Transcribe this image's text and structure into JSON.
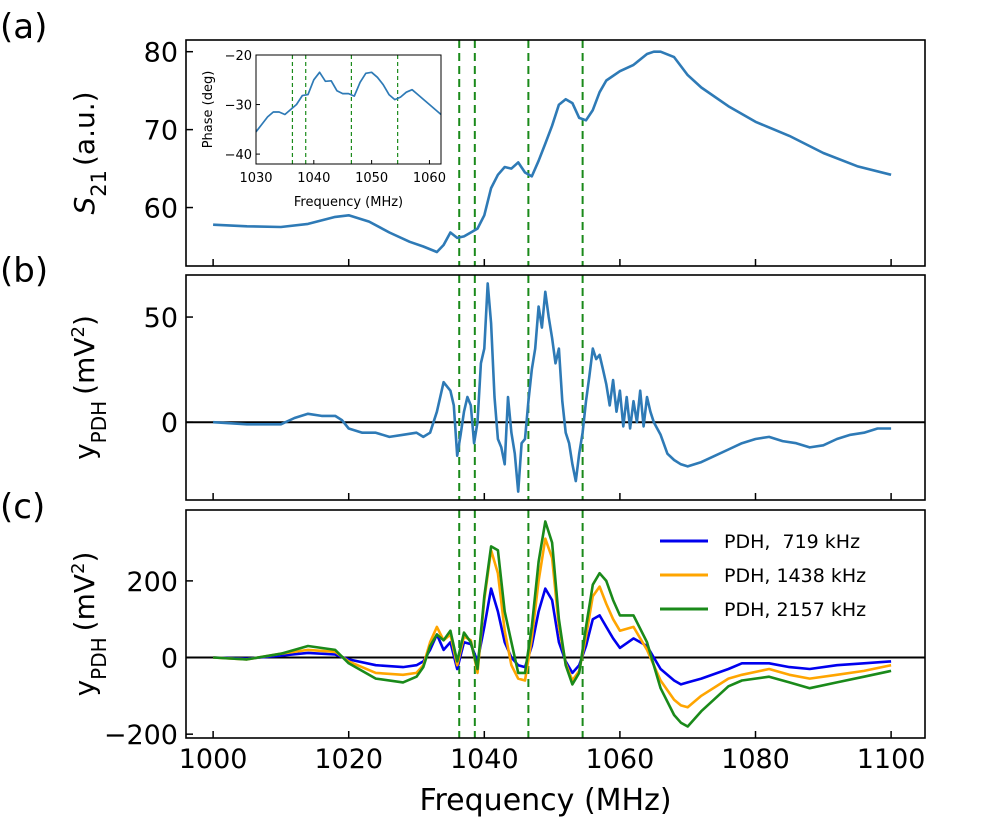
{
  "chart_data": [
    {
      "type": "line",
      "panel_label": "(a)",
      "ylabel_main": "S",
      "ylabel_sub": "21",
      "ylabel_unit": "(a.u.)",
      "xlim": [
        996,
        1105
      ],
      "ylim": [
        52.5,
        81.5
      ],
      "yticks": [
        60,
        70,
        80
      ],
      "xticks": [
        1000,
        1020,
        1040,
        1060,
        1080,
        1100
      ],
      "grid": false,
      "series": [
        {
          "name": "S21",
          "color": "#2e7ab6",
          "x": [
            1000,
            1005,
            1010,
            1014,
            1018,
            1020,
            1023,
            1026,
            1029,
            1031,
            1033,
            1034,
            1035,
            1036,
            1037,
            1038,
            1039,
            1040,
            1041,
            1042,
            1043,
            1044,
            1045,
            1046,
            1047,
            1048,
            1049,
            1050,
            1051,
            1052,
            1053,
            1054,
            1055,
            1056,
            1057,
            1058,
            1060,
            1062,
            1064,
            1065,
            1066,
            1068,
            1070,
            1072,
            1076,
            1080,
            1085,
            1090,
            1095,
            1100
          ],
          "y": [
            57.8,
            57.6,
            57.5,
            57.9,
            58.8,
            59.0,
            58.2,
            56.8,
            55.6,
            55.0,
            54.3,
            55.2,
            56.8,
            56.1,
            56.3,
            56.8,
            57.3,
            59.0,
            62.5,
            64.2,
            65.2,
            65.0,
            65.8,
            64.5,
            64.0,
            66.0,
            68.2,
            70.5,
            73.2,
            73.9,
            73.4,
            71.5,
            71.2,
            72.5,
            74.8,
            76.3,
            77.5,
            78.3,
            79.7,
            80.0,
            80.0,
            79.3,
            77.0,
            75.4,
            73.0,
            71.0,
            69.2,
            67.0,
            65.3,
            64.2
          ]
        }
      ],
      "vlines": [
        1036.3,
        1038.6,
        1046.5,
        1054.5
      ],
      "inset": {
        "xlabel": "Frequency (MHz)",
        "ylabel": "Phase (deg)",
        "xlim": [
          1030,
          1062
        ],
        "ylim": [
          -42,
          -20
        ],
        "xticks": [
          1030,
          1040,
          1050,
          1060
        ],
        "yticks": [
          -20,
          -30,
          -40
        ],
        "vlines": [
          1036.3,
          1038.6,
          1046.5,
          1054.5
        ],
        "series": [
          {
            "name": "Phase",
            "color": "#2e7ab6",
            "x": [
              1030,
              1031,
              1032,
              1033,
              1034,
              1035,
              1036,
              1037,
              1038,
              1039,
              1040,
              1041,
              1042,
              1043,
              1044,
              1045,
              1046,
              1047,
              1048,
              1049,
              1050,
              1051,
              1052,
              1053,
              1054,
              1055,
              1056,
              1057,
              1058,
              1059,
              1060,
              1061,
              1062
            ],
            "y": [
              -35.5,
              -34,
              -32.5,
              -31.5,
              -31.5,
              -32,
              -31,
              -30,
              -28.2,
              -28,
              -25,
              -23.5,
              -25.3,
              -25.2,
              -27.2,
              -27.8,
              -27.8,
              -28.3,
              -25.5,
              -23.7,
              -23.5,
              -24.5,
              -26,
              -28,
              -29,
              -28.5,
              -27.5,
              -27,
              -28,
              -29,
              -30,
              -31,
              -32
            ]
          }
        ]
      }
    },
    {
      "type": "line",
      "panel_label": "(b)",
      "ylabel_main": "y",
      "ylabel_sub": "PDH",
      "ylabel_unit_pre": "(mV",
      "ylabel_unit_sup": "2",
      "ylabel_unit_post": ")",
      "xlim": [
        996,
        1105
      ],
      "ylim": [
        -37,
        70
      ],
      "yticks": [
        0,
        50
      ],
      "xticks": [
        1000,
        1020,
        1040,
        1060,
        1080,
        1100
      ],
      "grid": false,
      "hline": 0,
      "series": [
        {
          "name": "y_PDH",
          "color": "#2e7ab6",
          "x": [
            1000,
            1005,
            1010,
            1012,
            1014,
            1016,
            1018,
            1019,
            1020,
            1022,
            1024,
            1026,
            1028,
            1030,
            1031,
            1032,
            1033,
            1034,
            1035,
            1035.5,
            1036,
            1036.5,
            1037,
            1037.5,
            1038,
            1038.5,
            1039,
            1039.5,
            1040,
            1040.5,
            1041,
            1041.5,
            1042,
            1042.5,
            1043,
            1043.5,
            1044,
            1044.5,
            1045,
            1045.5,
            1046,
            1046.5,
            1047,
            1047.5,
            1048,
            1048.5,
            1049,
            1049.5,
            1050,
            1050.5,
            1051,
            1051.5,
            1052,
            1052.5,
            1053,
            1053.5,
            1054,
            1054.5,
            1055,
            1055.5,
            1056,
            1056.5,
            1057,
            1057.5,
            1058,
            1058.5,
            1059,
            1059.5,
            1060,
            1060.5,
            1061,
            1061.5,
            1062,
            1062.5,
            1063,
            1063.5,
            1064,
            1064.5,
            1065,
            1066,
            1067,
            1068,
            1069,
            1070,
            1072,
            1074,
            1076,
            1078,
            1080,
            1082,
            1084,
            1086,
            1088,
            1090,
            1092,
            1094,
            1096,
            1098,
            1100
          ],
          "y": [
            0,
            -1,
            -1,
            2,
            4,
            3,
            3,
            1,
            -3,
            -5,
            -5,
            -7,
            -6,
            -5,
            -7,
            -5,
            5,
            19,
            15,
            8,
            -16,
            -6,
            5,
            12,
            8,
            -10,
            0,
            28,
            35,
            66,
            47,
            12,
            -8,
            -12,
            -20,
            12,
            -5,
            -15,
            -33,
            -10,
            -8,
            10,
            25,
            35,
            55,
            45,
            62,
            50,
            40,
            28,
            35,
            10,
            -5,
            -10,
            -20,
            -28,
            -15,
            -5,
            10,
            22,
            35,
            30,
            32,
            25,
            18,
            8,
            20,
            5,
            15,
            -2,
            12,
            -3,
            10,
            0,
            15,
            -2,
            12,
            5,
            0,
            -6,
            -15,
            -18,
            -20,
            -21,
            -19,
            -16,
            -13,
            -10,
            -8,
            -7,
            -9,
            -10,
            -12,
            -11,
            -8,
            -6,
            -5,
            -3,
            -3
          ]
        }
      ],
      "vlines": [
        1036.3,
        1038.6,
        1046.5,
        1054.5
      ]
    },
    {
      "type": "line",
      "panel_label": "(c)",
      "ylabel_main": "y",
      "ylabel_sub": "PDH",
      "ylabel_unit_pre": "(mV",
      "ylabel_unit_sup": "2",
      "ylabel_unit_post": ")",
      "xlabel": "Frequency (MHz)",
      "xlim": [
        996,
        1105
      ],
      "ylim": [
        -210,
        385
      ],
      "yticks": [
        -200,
        0,
        200
      ],
      "xticks": [
        1000,
        1020,
        1040,
        1060,
        1080,
        1100
      ],
      "grid": false,
      "hline": 0,
      "legend_position": "top-right",
      "x": [
        1000,
        1005,
        1010,
        1014,
        1018,
        1020,
        1024,
        1028,
        1030,
        1031,
        1032,
        1033,
        1034,
        1035,
        1036,
        1037,
        1038,
        1039,
        1040,
        1041,
        1042,
        1043,
        1044,
        1045,
        1046,
        1047,
        1048,
        1049,
        1050,
        1051,
        1052,
        1053,
        1054,
        1055,
        1056,
        1057,
        1058,
        1059,
        1060,
        1062,
        1064,
        1066,
        1068,
        1069,
        1070,
        1072,
        1076,
        1078,
        1082,
        1085,
        1088,
        1092,
        1096,
        1100
      ],
      "series": [
        {
          "name": "PDH,  719 kHz",
          "color": "#0000ee",
          "values": [
            0,
            -3,
            5,
            12,
            8,
            -5,
            -20,
            -25,
            -20,
            -10,
            20,
            60,
            20,
            40,
            -30,
            40,
            35,
            -10,
            80,
            180,
            120,
            40,
            0,
            -20,
            -25,
            30,
            120,
            180,
            150,
            40,
            -10,
            -40,
            -20,
            30,
            100,
            110,
            80,
            50,
            25,
            50,
            30,
            -30,
            -60,
            -70,
            -65,
            -55,
            -30,
            -15,
            -15,
            -25,
            -30,
            -20,
            -15,
            -10
          ]
        },
        {
          "name": "PDH, 1438 kHz",
          "color": "#ffa500",
          "values": [
            0,
            -5,
            10,
            20,
            15,
            -10,
            -40,
            -45,
            -40,
            -20,
            40,
            80,
            45,
            60,
            -20,
            55,
            45,
            -40,
            150,
            280,
            220,
            70,
            -20,
            -55,
            -60,
            50,
            200,
            310,
            260,
            80,
            -15,
            -60,
            -35,
            55,
            160,
            185,
            140,
            100,
            70,
            80,
            20,
            -60,
            -110,
            -125,
            -130,
            -100,
            -55,
            -45,
            -30,
            -45,
            -55,
            -45,
            -35,
            -20
          ]
        },
        {
          "name": "PDH, 2157 kHz",
          "color": "#1a8a1a",
          "values": [
            0,
            -5,
            10,
            30,
            20,
            -15,
            -55,
            -65,
            -50,
            -25,
            30,
            60,
            45,
            70,
            -10,
            65,
            40,
            -30,
            160,
            290,
            280,
            120,
            40,
            -40,
            -40,
            80,
            250,
            355,
            300,
            100,
            -20,
            -70,
            -40,
            80,
            190,
            220,
            200,
            150,
            110,
            110,
            40,
            -80,
            -150,
            -170,
            -180,
            -140,
            -75,
            -60,
            -50,
            -65,
            -80,
            -65,
            -50,
            -35
          ]
        }
      ],
      "vlines": [
        1036.3,
        1038.6,
        1046.5,
        1054.5
      ]
    }
  ]
}
